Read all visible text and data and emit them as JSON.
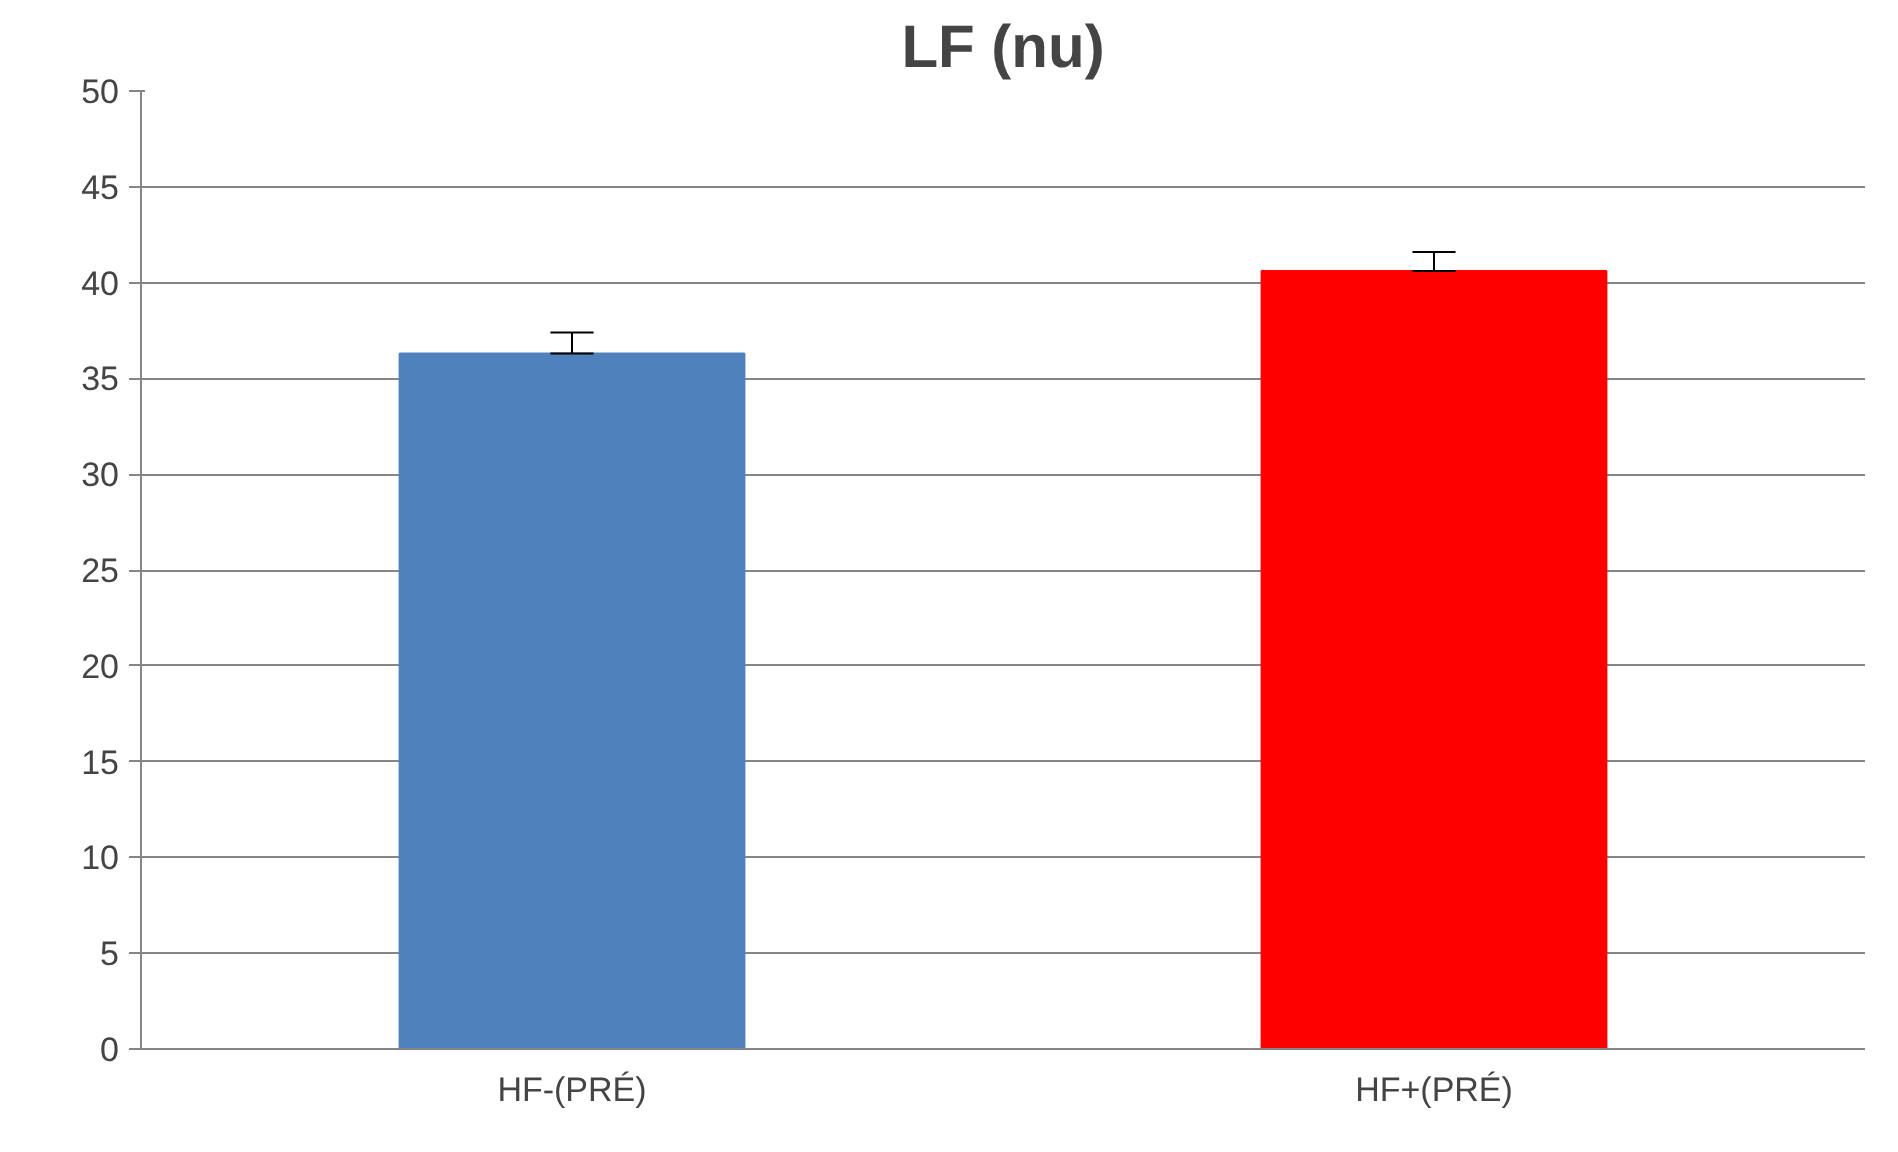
{
  "chart_data": {
    "type": "bar",
    "title": "LF (nu)",
    "categories": [
      "HF-(PRÉ)",
      "HF+(PRÉ)"
    ],
    "values": [
      36.3,
      40.6
    ],
    "colors": [
      "#4f81bd",
      "#ff0000"
    ],
    "errors": [
      [
        36.3,
        37.4
      ],
      [
        40.6,
        41.6
      ]
    ],
    "ylim": [
      0,
      50
    ],
    "yticks": [
      0,
      5,
      10,
      15,
      20,
      25,
      30,
      35,
      40,
      45,
      50
    ],
    "grid": "y"
  }
}
